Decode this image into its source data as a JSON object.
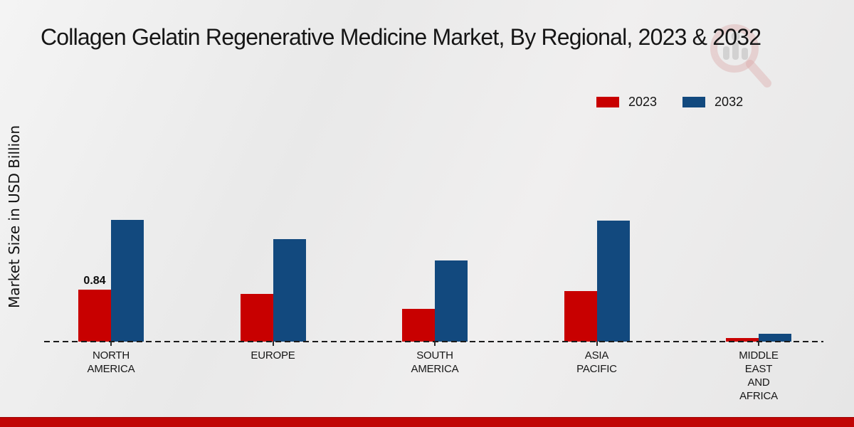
{
  "chart_data": {
    "type": "bar",
    "title": "Collagen Gelatin Regenerative Medicine Market, By Regional, 2023 & 2032",
    "ylabel": "Market Size in USD Billion",
    "categories": [
      "NORTH\nAMERICA",
      "EUROPE",
      "SOUTH\nAMERICA",
      "ASIA\nPACIFIC",
      "MIDDLE\nEAST\nAND\nAFRICA"
    ],
    "series": [
      {
        "name": "2023",
        "color": "#c80000",
        "values": [
          0.84,
          0.77,
          0.53,
          0.82,
          0.06
        ]
      },
      {
        "name": "2032",
        "color": "#12497e",
        "values": [
          1.98,
          1.66,
          1.32,
          1.96,
          0.13
        ]
      }
    ],
    "data_labels": {
      "series": "2023",
      "values": [
        "0.84",
        null,
        null,
        null,
        null
      ]
    },
    "axis": {
      "baseline_style": "dashed-black",
      "gridlines": false,
      "y_ticks_visible": false
    },
    "legend_position": "top-right",
    "units": "USD Billion"
  },
  "watermark": {
    "icon": "magnifier-bar-chart-logo",
    "ring_color": "#c95c5c",
    "bars_color": "#8a8a8a"
  },
  "footer": {
    "accent_color": "#c10505"
  }
}
